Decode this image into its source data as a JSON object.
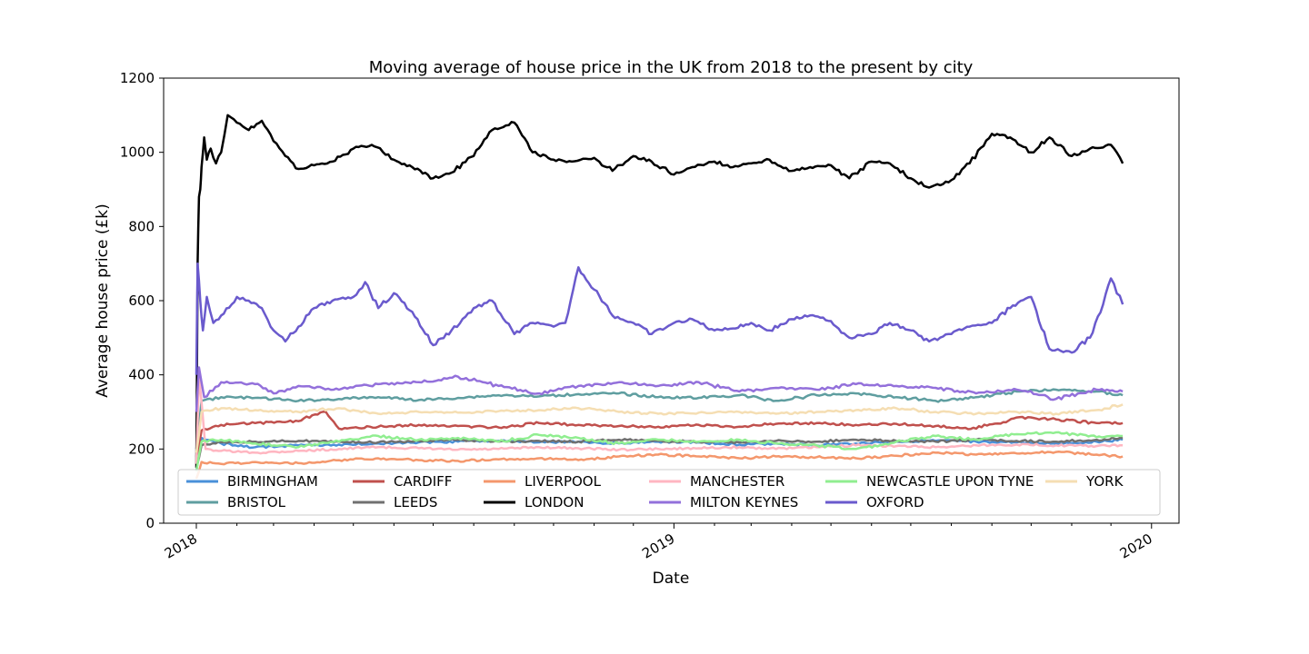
{
  "chart_data": {
    "type": "line",
    "title": "Moving average of house price in the UK from 2018 to the present by city",
    "xlabel": "Date",
    "ylabel": "Average house price (£k)",
    "xlim": [
      "2017-12-07",
      "2020-01-22"
    ],
    "ylim": [
      0,
      1200
    ],
    "x_ticks": [
      {
        "date": "2018-01-01",
        "label": "2018"
      },
      {
        "date": "2019-01-01",
        "label": "2019"
      },
      {
        "date": "2020-01-01",
        "label": "2020"
      }
    ],
    "y_ticks": [
      0,
      200,
      400,
      600,
      800,
      1000,
      1200
    ],
    "grid": false,
    "legend": {
      "position": "lower-center",
      "columns": 6
    },
    "series": [
      {
        "name": "BIRMINGHAM",
        "color": "#4a90d9",
        "dates": [
          "2018-01-01",
          "2018-01-05",
          "2018-01-20",
          "2018-02-15",
          "2018-03-20",
          "2018-04-20",
          "2018-05-20",
          "2018-06-20",
          "2018-07-20",
          "2018-08-20",
          "2018-09-20",
          "2018-10-20",
          "2018-11-20",
          "2018-12-20",
          "2019-01-20",
          "2019-02-20",
          "2019-03-20",
          "2019-04-20",
          "2019-05-20",
          "2019-06-20",
          "2019-07-20",
          "2019-08-20",
          "2019-09-20",
          "2019-10-20",
          "2019-11-20",
          "2019-12-10"
        ],
        "values": [
          140,
          230,
          215,
          205,
          210,
          212,
          215,
          218,
          220,
          222,
          218,
          220,
          215,
          220,
          218,
          212,
          215,
          210,
          215,
          220,
          222,
          220,
          218,
          215,
          220,
          225
        ]
      },
      {
        "name": "BRISTOL",
        "color": "#5f9ea0",
        "dates": [
          "2018-01-01",
          "2018-01-05",
          "2018-01-20",
          "2018-02-15",
          "2018-03-20",
          "2018-04-20",
          "2018-05-20",
          "2018-06-20",
          "2018-07-20",
          "2018-08-20",
          "2018-09-20",
          "2018-10-20",
          "2018-11-20",
          "2018-12-20",
          "2019-01-20",
          "2019-02-20",
          "2019-03-20",
          "2019-04-20",
          "2019-05-20",
          "2019-06-20",
          "2019-07-20",
          "2019-08-20",
          "2019-09-20",
          "2019-10-20",
          "2019-11-20",
          "2019-12-10"
        ],
        "values": [
          200,
          330,
          340,
          338,
          330,
          335,
          340,
          332,
          338,
          345,
          342,
          348,
          350,
          340,
          338,
          345,
          330,
          345,
          350,
          340,
          330,
          340,
          355,
          360,
          355,
          345
        ]
      },
      {
        "name": "CARDIFF",
        "color": "#c0504d",
        "dates": [
          "2018-01-01",
          "2018-01-05",
          "2018-01-20",
          "2018-02-15",
          "2018-03-20",
          "2018-04-10",
          "2018-04-20",
          "2018-05-20",
          "2018-06-20",
          "2018-07-20",
          "2018-08-20",
          "2018-09-20",
          "2018-10-20",
          "2018-11-20",
          "2018-12-20",
          "2019-01-20",
          "2019-02-20",
          "2019-03-20",
          "2019-04-20",
          "2019-05-20",
          "2019-06-20",
          "2019-07-20",
          "2019-08-20",
          "2019-09-20",
          "2019-10-20",
          "2019-11-20",
          "2019-12-10"
        ],
        "values": [
          180,
          250,
          265,
          270,
          275,
          300,
          255,
          260,
          265,
          262,
          258,
          270,
          265,
          262,
          260,
          265,
          260,
          268,
          270,
          265,
          268,
          262,
          255,
          285,
          280,
          270,
          270
        ]
      },
      {
        "name": "LEEDS",
        "color": "#707070",
        "dates": [
          "2018-01-01",
          "2018-01-05",
          "2018-01-20",
          "2018-02-15",
          "2018-03-20",
          "2018-04-20",
          "2018-05-20",
          "2018-06-20",
          "2018-07-20",
          "2018-08-20",
          "2018-09-20",
          "2018-10-20",
          "2018-11-20",
          "2018-12-20",
          "2019-01-20",
          "2019-02-20",
          "2019-03-20",
          "2019-04-20",
          "2019-05-20",
          "2019-06-20",
          "2019-07-20",
          "2019-08-20",
          "2019-09-20",
          "2019-10-20",
          "2019-11-20",
          "2019-12-10"
        ],
        "values": [
          150,
          210,
          218,
          220,
          222,
          220,
          218,
          222,
          225,
          220,
          222,
          220,
          225,
          222,
          220,
          218,
          222,
          220,
          225,
          222,
          220,
          225,
          222,
          220,
          225,
          230
        ]
      },
      {
        "name": "LIVERPOOL",
        "color": "#f4976c",
        "dates": [
          "2018-01-01",
          "2018-01-05",
          "2018-01-20",
          "2018-02-15",
          "2018-03-20",
          "2018-04-20",
          "2018-05-20",
          "2018-06-20",
          "2018-07-20",
          "2018-08-20",
          "2018-09-20",
          "2018-10-20",
          "2018-11-20",
          "2018-12-20",
          "2019-01-20",
          "2019-02-20",
          "2019-03-20",
          "2019-04-20",
          "2019-05-20",
          "2019-06-20",
          "2019-07-20",
          "2019-08-20",
          "2019-09-20",
          "2019-10-20",
          "2019-11-20",
          "2019-12-10"
        ],
        "values": [
          120,
          165,
          160,
          165,
          162,
          170,
          175,
          170,
          168,
          172,
          175,
          170,
          180,
          185,
          180,
          175,
          180,
          178,
          175,
          182,
          190,
          185,
          188,
          192,
          185,
          180
        ]
      },
      {
        "name": "LONDON",
        "color": "#000000",
        "dates": [
          "2018-01-01",
          "2018-01-02",
          "2018-01-03",
          "2018-01-04",
          "2018-01-05",
          "2018-01-07",
          "2018-01-09",
          "2018-01-12",
          "2018-01-16",
          "2018-01-20",
          "2018-01-25",
          "2018-02-01",
          "2018-02-10",
          "2018-02-20",
          "2018-03-01",
          "2018-03-10",
          "2018-03-20",
          "2018-04-01",
          "2018-04-15",
          "2018-05-01",
          "2018-05-15",
          "2018-06-01",
          "2018-06-15",
          "2018-07-01",
          "2018-07-15",
          "2018-08-01",
          "2018-08-15",
          "2018-09-01",
          "2018-09-15",
          "2018-10-01",
          "2018-10-15",
          "2018-11-01",
          "2018-11-15",
          "2018-12-01",
          "2018-12-15",
          "2019-01-01",
          "2019-01-15",
          "2019-02-01",
          "2019-02-15",
          "2019-03-01",
          "2019-03-15",
          "2019-04-01",
          "2019-04-15",
          "2019-05-01",
          "2019-05-15",
          "2019-06-01",
          "2019-06-15",
          "2019-07-01",
          "2019-07-15",
          "2019-08-01",
          "2019-08-15",
          "2019-09-01",
          "2019-09-15",
          "2019-10-01",
          "2019-10-15",
          "2019-11-01",
          "2019-11-15",
          "2019-12-01",
          "2019-12-10"
        ],
        "values": [
          150,
          700,
          880,
          900,
          960,
          1040,
          980,
          1010,
          970,
          1000,
          1100,
          1080,
          1060,
          1085,
          1030,
          990,
          955,
          965,
          975,
          1010,
          1020,
          980,
          960,
          930,
          945,
          990,
          1060,
          1080,
          1000,
          980,
          975,
          985,
          950,
          990,
          975,
          940,
          960,
          975,
          960,
          970,
          980,
          950,
          960,
          965,
          930,
          975,
          970,
          930,
          905,
          925,
          970,
          1050,
          1040,
          1000,
          1040,
          990,
          1010,
          1020,
          970
        ]
      },
      {
        "name": "MANCHESTER",
        "color": "#ffb6c1",
        "dates": [
          "2018-01-01",
          "2018-01-03",
          "2018-01-08",
          "2018-01-20",
          "2018-02-15",
          "2018-03-20",
          "2018-04-20",
          "2018-05-20",
          "2018-06-20",
          "2018-07-20",
          "2018-08-20",
          "2018-09-20",
          "2018-10-20",
          "2018-11-20",
          "2018-12-20",
          "2019-01-20",
          "2019-02-20",
          "2019-03-20",
          "2019-04-20",
          "2019-05-20",
          "2019-06-20",
          "2019-07-20",
          "2019-08-20",
          "2019-09-20",
          "2019-10-20",
          "2019-11-20",
          "2019-12-10"
        ],
        "values": [
          160,
          400,
          200,
          195,
          190,
          195,
          200,
          205,
          202,
          198,
          200,
          205,
          202,
          198,
          200,
          202,
          205,
          200,
          205,
          210,
          208,
          205,
          210,
          212,
          210,
          208,
          210
        ]
      },
      {
        "name": "MILTON KEYNES",
        "color": "#9370db",
        "dates": [
          "2018-01-01",
          "2018-01-03",
          "2018-01-07",
          "2018-01-20",
          "2018-02-15",
          "2018-03-01",
          "2018-03-20",
          "2018-04-20",
          "2018-05-20",
          "2018-06-20",
          "2018-07-20",
          "2018-08-20",
          "2018-09-20",
          "2018-10-20",
          "2018-11-20",
          "2018-12-20",
          "2019-01-20",
          "2019-02-20",
          "2019-03-20",
          "2019-04-20",
          "2019-05-20",
          "2019-06-20",
          "2019-07-20",
          "2019-08-20",
          "2019-09-20",
          "2019-10-20",
          "2019-11-20",
          "2019-12-10"
        ],
        "values": [
          300,
          420,
          340,
          380,
          375,
          350,
          370,
          360,
          375,
          380,
          395,
          370,
          350,
          370,
          380,
          370,
          380,
          355,
          365,
          360,
          375,
          370,
          365,
          350,
          360,
          335,
          360,
          355
        ]
      },
      {
        "name": "NEWCASTLE UPON TYNE",
        "color": "#90ee90",
        "dates": [
          "2018-01-01",
          "2018-01-05",
          "2018-01-20",
          "2018-02-15",
          "2018-03-20",
          "2018-04-20",
          "2018-05-20",
          "2018-06-20",
          "2018-07-20",
          "2018-08-20",
          "2018-09-20",
          "2018-10-20",
          "2018-11-20",
          "2018-12-20",
          "2019-01-20",
          "2019-02-20",
          "2019-03-20",
          "2019-04-20",
          "2019-05-20",
          "2019-06-20",
          "2019-07-20",
          "2019-08-20",
          "2019-09-20",
          "2019-10-20",
          "2019-11-20",
          "2019-12-10"
        ],
        "values": [
          140,
          220,
          225,
          215,
          205,
          220,
          235,
          225,
          230,
          220,
          238,
          230,
          215,
          225,
          220,
          225,
          215,
          210,
          200,
          220,
          235,
          225,
          240,
          245,
          232,
          235
        ]
      },
      {
        "name": "OXFORD",
        "color": "#6a5acd",
        "dates": [
          "2018-01-01",
          "2018-01-02",
          "2018-01-04",
          "2018-01-06",
          "2018-01-09",
          "2018-01-14",
          "2018-01-20",
          "2018-02-01",
          "2018-02-10",
          "2018-02-20",
          "2018-03-01",
          "2018-03-10",
          "2018-03-20",
          "2018-04-01",
          "2018-04-15",
          "2018-05-01",
          "2018-05-10",
          "2018-05-20",
          "2018-06-01",
          "2018-06-15",
          "2018-07-01",
          "2018-07-15",
          "2018-08-01",
          "2018-08-15",
          "2018-09-01",
          "2018-09-15",
          "2018-10-01",
          "2018-10-10",
          "2018-10-20",
          "2018-11-01",
          "2018-11-15",
          "2018-12-01",
          "2018-12-15",
          "2019-01-01",
          "2019-01-15",
          "2019-02-01",
          "2019-02-15",
          "2019-03-01",
          "2019-03-15",
          "2019-04-01",
          "2019-04-15",
          "2019-05-01",
          "2019-05-15",
          "2019-06-01",
          "2019-06-15",
          "2019-07-01",
          "2019-07-15",
          "2019-08-01",
          "2019-08-15",
          "2019-09-01",
          "2019-09-15",
          "2019-10-01",
          "2019-10-15",
          "2019-11-01",
          "2019-11-15",
          "2019-11-25",
          "2019-12-01",
          "2019-12-10"
        ],
        "values": [
          400,
          700,
          600,
          520,
          610,
          540,
          560,
          610,
          600,
          580,
          520,
          490,
          530,
          580,
          600,
          610,
          650,
          580,
          620,
          570,
          480,
          520,
          580,
          600,
          510,
          540,
          530,
          540,
          690,
          630,
          560,
          540,
          510,
          540,
          550,
          520,
          525,
          540,
          520,
          550,
          560,
          545,
          500,
          510,
          540,
          520,
          490,
          510,
          530,
          540,
          580,
          610,
          470,
          460,
          500,
          590,
          660,
          590
        ]
      },
      {
        "name": "YORK",
        "color": "#f5deb3",
        "dates": [
          "2018-01-01",
          "2018-01-05",
          "2018-01-20",
          "2018-02-15",
          "2018-03-20",
          "2018-04-20",
          "2018-05-20",
          "2018-06-20",
          "2018-07-20",
          "2018-08-20",
          "2018-09-20",
          "2018-10-20",
          "2018-11-20",
          "2018-12-20",
          "2019-01-20",
          "2019-02-20",
          "2019-03-20",
          "2019-04-20",
          "2019-05-20",
          "2019-06-20",
          "2019-07-20",
          "2019-08-20",
          "2019-09-20",
          "2019-10-20",
          "2019-11-20",
          "2019-12-10"
        ],
        "values": [
          190,
          300,
          310,
          305,
          300,
          310,
          295,
          300,
          298,
          302,
          305,
          310,
          300,
          295,
          298,
          300,
          295,
          300,
          305,
          310,
          300,
          295,
          300,
          295,
          305,
          320
        ]
      }
    ]
  }
}
